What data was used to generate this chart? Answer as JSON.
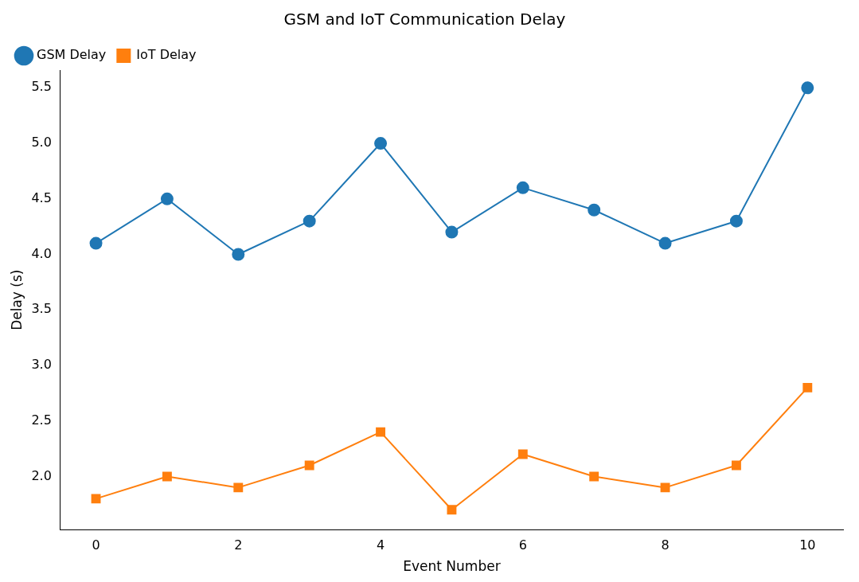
{
  "chart_data": {
    "type": "line",
    "title": "GSM and IoT Communication Delay",
    "xlabel": "Event Number",
    "ylabel": "Delay (s)",
    "x": [
      0,
      1,
      2,
      3,
      4,
      5,
      6,
      7,
      8,
      9,
      10
    ],
    "series": [
      {
        "name": "GSM Delay",
        "color": "#1f77b4",
        "marker": "circle",
        "values": [
          4.1,
          4.5,
          4.0,
          4.3,
          5.0,
          4.2,
          4.6,
          4.4,
          4.1,
          4.3,
          5.5
        ]
      },
      {
        "name": "IoT Delay",
        "color": "#ff7f0e",
        "marker": "square",
        "values": [
          1.8,
          2.0,
          1.9,
          2.1,
          2.4,
          1.7,
          2.2,
          2.0,
          1.9,
          2.1,
          2.8
        ]
      }
    ],
    "xlim": [
      -0.5,
      10.5
    ],
    "xticks": [
      0,
      2,
      4,
      6,
      8,
      10
    ],
    "ylim": [
      1.52,
      5.66
    ],
    "yticks": [
      {
        "value": 2,
        "label": "2.0"
      },
      2.5,
      {
        "value": 3,
        "label": "3.0"
      },
      3.5,
      {
        "value": 4,
        "label": "4.0"
      },
      4.5,
      {
        "value": 5,
        "label": "5.0"
      },
      5.5
    ],
    "grid": false,
    "legend": "top left",
    "line_style": "solid"
  }
}
